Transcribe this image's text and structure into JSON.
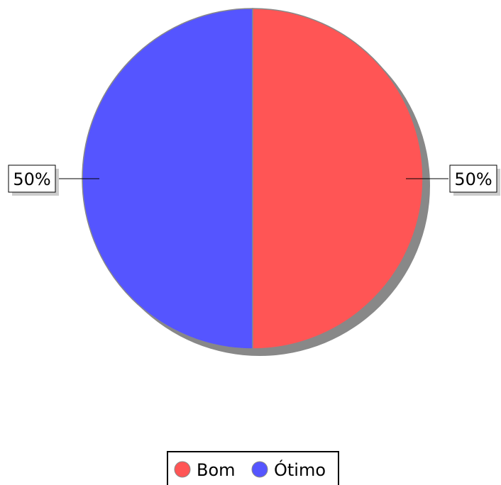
{
  "chart_data": {
    "type": "pie",
    "start_angle_deg": 0,
    "direction": "clockwise",
    "slices": [
      {
        "label": "Bom",
        "value": 50,
        "color": "#ff5555",
        "display": "50%"
      },
      {
        "label": "Ótimo",
        "value": 50,
        "color": "#5555ff",
        "display": "50%"
      }
    ],
    "slice_border_color": "#888888",
    "shadow_color": "#888888",
    "label_shadow_color": "#cccccc",
    "legend": {
      "placement": "bottom-center",
      "items": [
        "Bom",
        "Ótimo"
      ]
    }
  }
}
